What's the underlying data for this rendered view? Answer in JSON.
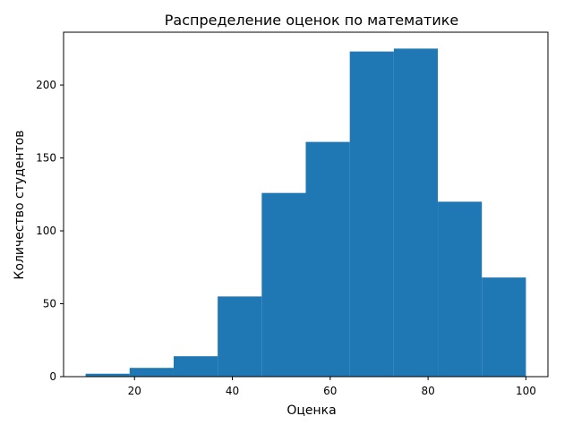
{
  "chart_data": {
    "type": "bar",
    "subtype": "histogram",
    "title": "Распределение оценок по математике",
    "xlabel": "Оценка",
    "ylabel": "Количество студентов",
    "bin_edges": [
      10,
      19,
      28,
      37,
      46,
      55,
      64,
      73,
      82,
      91,
      100
    ],
    "values": [
      2,
      6,
      14,
      55,
      126,
      161,
      223,
      225,
      120,
      68
    ],
    "xlim": [
      5.5,
      104.5
    ],
    "ylim": [
      0,
      236.25
    ],
    "x_ticks": [
      20,
      40,
      60,
      80,
      100
    ],
    "y_ticks": [
      0,
      50,
      100,
      150,
      200
    ],
    "x_tick_labels": [
      "20",
      "40",
      "60",
      "80",
      "100"
    ],
    "y_tick_labels": [
      "0",
      "50",
      "100",
      "150",
      "200"
    ],
    "grid": false,
    "legend": "none",
    "colors": {
      "bar": "#1f77b4",
      "axes": "#000000",
      "background": "#ffffff"
    }
  }
}
